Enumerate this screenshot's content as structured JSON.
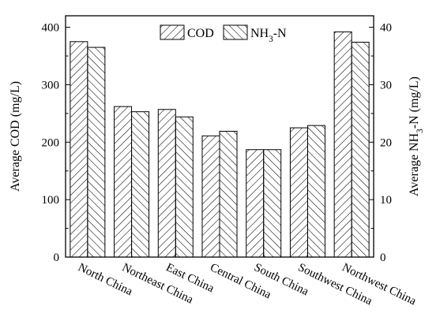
{
  "chart_data": {
    "type": "bar",
    "categories": [
      "North China",
      "Northeast China",
      "East China",
      "Central China",
      "South China",
      "Southwest China",
      "Northwest China"
    ],
    "series": [
      {
        "name": "COD",
        "axis": "left",
        "hatch": "forward",
        "values": [
          375,
          262,
          257,
          211,
          187,
          225,
          392
        ]
      },
      {
        "name": "NH3-N",
        "axis": "right",
        "hatch": "backward",
        "values": [
          36.5,
          25.3,
          24.4,
          21.9,
          18.7,
          22.9,
          37.4
        ]
      }
    ],
    "left_axis": {
      "label": "Average COD (mg/L)",
      "ylim": [
        0,
        420
      ],
      "ticks": [
        0,
        100,
        200,
        300,
        400
      ]
    },
    "right_axis": {
      "label": "Average NH3-N (mg/L)",
      "ylim": [
        0,
        42
      ],
      "ticks": [
        0,
        10,
        20,
        30,
        40
      ]
    },
    "legend": {
      "placement": "top-center",
      "entries": [
        "COD",
        "NH3-N"
      ]
    },
    "grid": false,
    "colors": {
      "stroke": "#000000",
      "background": "#ffffff"
    }
  }
}
